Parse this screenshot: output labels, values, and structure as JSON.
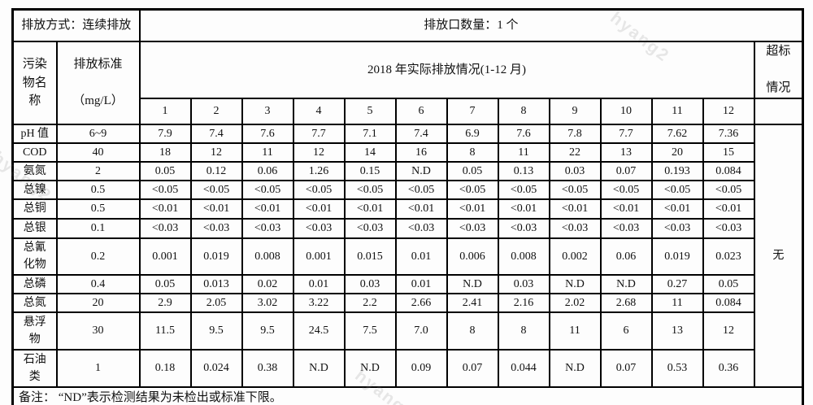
{
  "watermark_text": "hyang2",
  "table": {
    "meta": {
      "discharge_method": "排放方式：连续排放",
      "outlet_count": "排放口数量：1 个"
    },
    "header": {
      "pollutant_label": "污染\n物名\n称",
      "standard_label": "排放标准\n\n（mg/L）",
      "period_label": "2018 年实际排放情况(1-12 月)",
      "exceed_label": "超标\n\n情况",
      "months": [
        "1",
        "2",
        "3",
        "4",
        "5",
        "6",
        "7",
        "8",
        "9",
        "10",
        "11",
        "12"
      ]
    },
    "exceed_value": "无",
    "rows": [
      {
        "name": "pH 值",
        "standard": "6~9",
        "values": [
          "7.9",
          "7.4",
          "7.6",
          "7.7",
          "7.1",
          "7.4",
          "6.9",
          "7.6",
          "7.8",
          "7.7",
          "7.62",
          "7.36"
        ]
      },
      {
        "name": "COD",
        "standard": "40",
        "values": [
          "18",
          "12",
          "11",
          "12",
          "14",
          "16",
          "8",
          "11",
          "22",
          "13",
          "20",
          "15"
        ]
      },
      {
        "name": "氨氮",
        "standard": "2",
        "values": [
          "0.05",
          "0.12",
          "0.06",
          "1.26",
          "0.15",
          "N.D",
          "0.05",
          "0.13",
          "0.03",
          "0.07",
          "0.193",
          "0.084"
        ]
      },
      {
        "name": "总镍",
        "standard": "0.5",
        "values": [
          "<0.05",
          "<0.05",
          "<0.05",
          "<0.05",
          "<0.05",
          "<0.05",
          "<0.05",
          "<0.05",
          "<0.05",
          "<0.05",
          "<0.05",
          "<0.05"
        ]
      },
      {
        "name": "总铜",
        "standard": "0.5",
        "values": [
          "<0.01",
          "<0.01",
          "<0.01",
          "<0.01",
          "<0.01",
          "<0.01",
          "<0.01",
          "<0.01",
          "<0.01",
          "<0.01",
          "<0.01",
          "<0.01"
        ]
      },
      {
        "name": "总银",
        "standard": "0.1",
        "values": [
          "<0.03",
          "<0.03",
          "<0.03",
          "<0.03",
          "<0.03",
          "<0.03",
          "<0.03",
          "<0.03",
          "<0.03",
          "<0.03",
          "<0.03",
          "<0.03"
        ]
      },
      {
        "name": "总氰\n化物",
        "standard": "0.2",
        "values": [
          "0.001",
          "0.019",
          "0.008",
          "0.001",
          "0.015",
          "0.01",
          "0.006",
          "0.008",
          "0.002",
          "0.06",
          "0.019",
          "0.023"
        ],
        "valign_top_cols": [
          1
        ]
      },
      {
        "name": "总磷",
        "standard": "0.4",
        "values": [
          "0.05",
          "0.013",
          "0.02",
          "0.01",
          "0.03",
          "0.01",
          "N.D",
          "0.03",
          "N.D",
          "N.D",
          "0.27",
          "0.05"
        ]
      },
      {
        "name": "总氮",
        "standard": "20",
        "values": [
          "2.9",
          "2.05",
          "3.02",
          "3.22",
          "2.2",
          "2.66",
          "2.41",
          "2.16",
          "2.02",
          "2.68",
          "11",
          "0.084"
        ]
      },
      {
        "name": "悬浮\n物",
        "standard": "30",
        "values": [
          "11.5",
          "9.5",
          "9.5",
          "24.5",
          "7.5",
          "7.0",
          "8",
          "8",
          "11",
          "6",
          "13",
          "12"
        ]
      },
      {
        "name": "石油\n类",
        "standard": "1",
        "values": [
          "0.18",
          "0.024",
          "0.38",
          "N.D",
          "N.D",
          "0.09",
          "0.07",
          "0.044",
          "N.D",
          "0.07",
          "0.53",
          "0.36"
        ]
      }
    ],
    "remark": "备注： “ND”表示检测结果为未检出或标准下限。"
  }
}
